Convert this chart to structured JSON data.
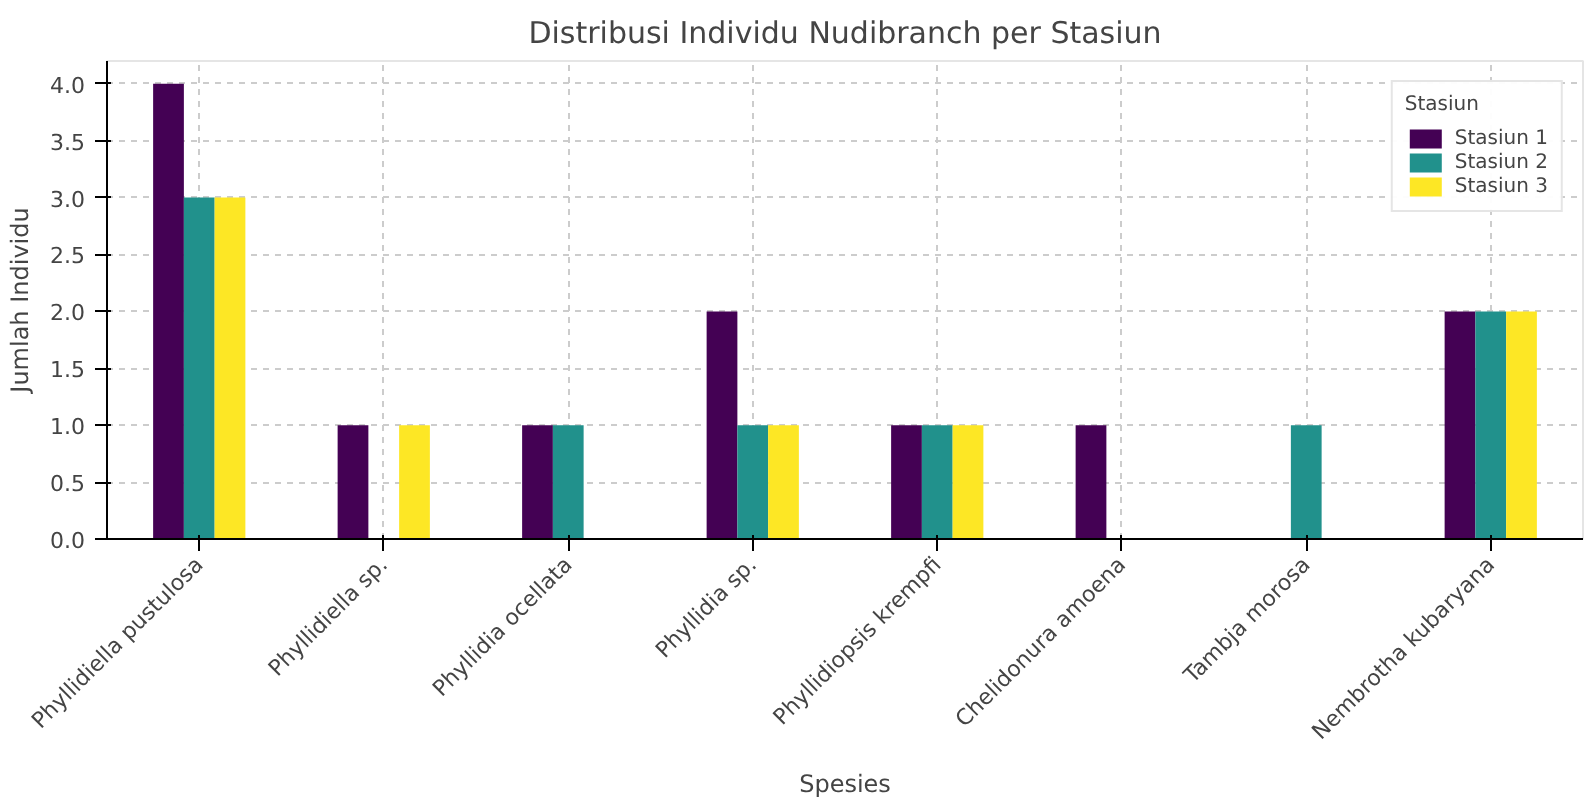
{
  "chart_data": {
    "type": "bar",
    "title": "Distribusi Individu Nudibranch per Stasiun",
    "xlabel": "Spesies",
    "ylabel": "Jumlah Individu",
    "legend_title": "Stasiun",
    "categories": [
      "Phyllidiella pustulosa",
      "Phyllidiella sp.",
      "Phyllidia ocellata",
      "Phyllidia sp.",
      "Phyllidiopsis krempfi",
      "Chelidonura amoena",
      "Tambja morosa",
      "Nembrotha kubaryana"
    ],
    "series": [
      {
        "name": "Stasiun 1",
        "color": "#440154",
        "values": [
          4,
          1,
          1,
          2,
          1,
          1,
          0,
          2
        ]
      },
      {
        "name": "Stasiun 2",
        "color": "#21918c",
        "values": [
          3,
          0,
          1,
          1,
          1,
          0,
          1,
          2
        ]
      },
      {
        "name": "Stasiun 3",
        "color": "#fde725",
        "values": [
          3,
          1,
          0,
          1,
          1,
          0,
          0,
          2
        ]
      }
    ],
    "ylim": [
      0,
      4.2
    ],
    "yticks": [
      {
        "value": 0,
        "label": "0.0"
      },
      {
        "value": 0.5,
        "label": "0.5"
      },
      {
        "value": 1,
        "label": "1.0"
      },
      {
        "value": 1.5,
        "label": "1.5"
      },
      {
        "value": 2,
        "label": "2.0"
      },
      {
        "value": 2.5,
        "label": "2.5"
      },
      {
        "value": 3,
        "label": "3.0"
      },
      {
        "value": 3.5,
        "label": "3.5"
      },
      {
        "value": 4,
        "label": "4.0"
      }
    ],
    "grid": true,
    "legend": "top right"
  }
}
